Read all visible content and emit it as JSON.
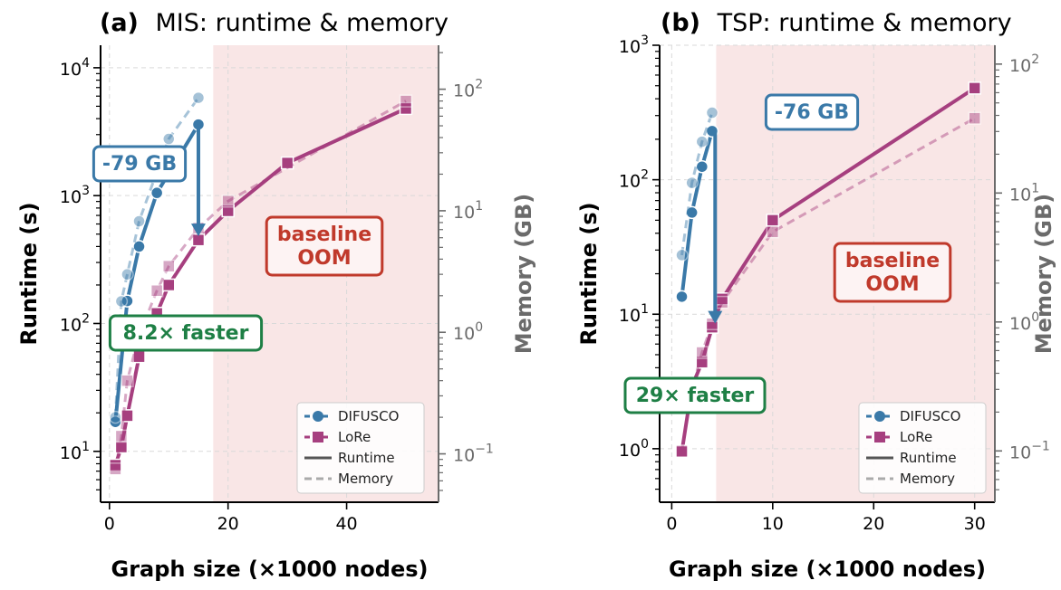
{
  "colors": {
    "difusco": "#3a79a8",
    "lore": "#a63f7f",
    "oom_region": "#f9e6e6",
    "oom_text": "#c0392b",
    "speedup": "#1e7f45",
    "memory_axis": "#6b6b6b"
  },
  "chart_data": [
    {
      "panel": "(a)",
      "title": "MIS: runtime & memory",
      "type": "line",
      "xlabel": "Graph size (×1000 nodes)",
      "ylabel": "Runtime (s)",
      "ylabel_right": "Memory (GB)",
      "xlim": [
        -1.5,
        55.5
      ],
      "ylim": [
        4,
        15000
      ],
      "ylim_right": [
        0.04,
        230
      ],
      "yscale": "log",
      "xticks": [
        "0",
        "20",
        "40"
      ],
      "yticks": [
        "10^1",
        "10^2",
        "10^3",
        "10^4"
      ],
      "yticks_right": [
        "10^-1",
        "10^0",
        "10^1",
        "10^2"
      ],
      "grid": true,
      "legend_loc": "lower right",
      "oom_region_x": [
        17.5,
        55.5
      ],
      "annotations": {
        "oom": "baseline\nOOM",
        "memory_saving": "-79 GB",
        "speedup": "8.2× faster"
      },
      "series": [
        {
          "name": "DIFUSCO",
          "metric": "Runtime",
          "x": [
            1,
            3,
            5,
            8,
            15
          ],
          "y": [
            17,
            150,
            400,
            1050,
            3600
          ]
        },
        {
          "name": "DIFUSCO",
          "metric": "Memory",
          "x": [
            1,
            2,
            3,
            5,
            10,
            15
          ],
          "y": [
            0.2,
            1.8,
            3.0,
            8.2,
            39,
            85
          ]
        },
        {
          "name": "LoRe",
          "metric": "Runtime",
          "x": [
            1,
            2,
            3,
            5,
            8,
            10,
            15,
            20,
            30,
            50
          ],
          "y": [
            7.8,
            10.8,
            19,
            55,
            120,
            200,
            450,
            760,
            1800,
            4800
          ]
        },
        {
          "name": "LoRe",
          "metric": "Memory",
          "x": [
            1,
            2,
            3,
            5,
            8,
            10,
            15,
            20,
            50
          ],
          "y": [
            0.075,
            0.14,
            0.4,
            0.95,
            2.2,
            3.5,
            7.2,
            12,
            80
          ]
        }
      ]
    },
    {
      "panel": "(b)",
      "title": "TSP: runtime & memory",
      "type": "line",
      "xlabel": "Graph size (×1000 nodes)",
      "ylabel": "Runtime (s)",
      "ylabel_right": "Memory (GB)",
      "xlim": [
        -1.2,
        32.0
      ],
      "ylim": [
        0.4,
        1000
      ],
      "ylim_right": [
        0.04,
        140
      ],
      "yscale": "log",
      "xticks": [
        "0",
        "10",
        "20",
        "30"
      ],
      "yticks": [
        "10^0",
        "10^1",
        "10^2",
        "10^3"
      ],
      "yticks_right": [
        "10^-1",
        "10^0",
        "10^1",
        "10^2"
      ],
      "grid": true,
      "legend_loc": "lower right",
      "oom_region_x": [
        4.4,
        32.0
      ],
      "annotations": {
        "oom": "baseline\nOOM",
        "memory_saving": "-76 GB",
        "speedup": "29× faster"
      },
      "series": [
        {
          "name": "DIFUSCO",
          "metric": "Runtime",
          "x": [
            1,
            2,
            3,
            4
          ],
          "y": [
            13.5,
            57,
            125,
            230
          ]
        },
        {
          "name": "DIFUSCO",
          "metric": "Memory",
          "x": [
            1,
            2,
            3,
            4
          ],
          "y": [
            3.3,
            12,
            25,
            42
          ]
        },
        {
          "name": "LoRe",
          "metric": "Runtime",
          "x": [
            1,
            2,
            3,
            4,
            5,
            10,
            30
          ],
          "y": [
            0.95,
            2.9,
            4.4,
            8,
            13,
            50,
            480
          ]
        },
        {
          "name": "LoRe",
          "metric": "Memory",
          "x": [
            1,
            2,
            3,
            4,
            5,
            10,
            30
          ],
          "y": [
            0.1,
            0.3,
            0.58,
            0.97,
            1.42,
            5,
            38
          ]
        }
      ]
    }
  ]
}
